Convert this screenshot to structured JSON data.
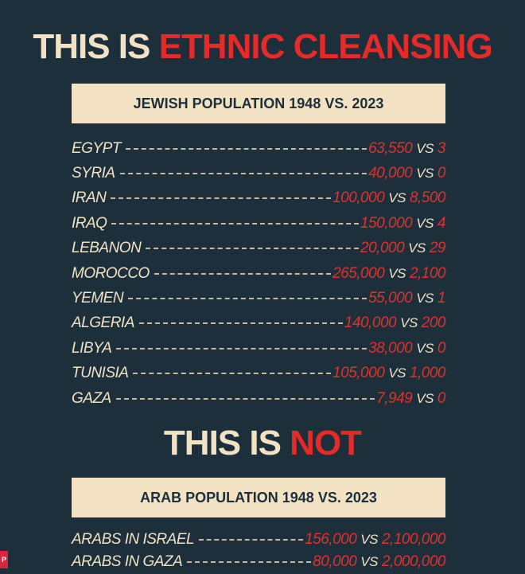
{
  "headline_1": {
    "part_1": "THIS IS ",
    "part_2": "ETHNIC CLEANSING"
  },
  "banner_1": "JEWISH POPULATION 1948 VS. 2023",
  "jewish_rows": [
    {
      "country": "EGYPT",
      "pop_1948": "63,550",
      "vs": "VS",
      "pop_2023": "3"
    },
    {
      "country": "SYRIA",
      "pop_1948": "40,000",
      "vs": "VS",
      "pop_2023": "0"
    },
    {
      "country": "IRAN",
      "pop_1948": "100,000",
      "vs": "VS",
      "pop_2023": "8,500"
    },
    {
      "country": "IRAQ",
      "pop_1948": "150,000",
      "vs": "VS",
      "pop_2023": "4"
    },
    {
      "country": "LEBANON",
      "pop_1948": "20,000",
      "vs": "VS",
      "pop_2023": "29"
    },
    {
      "country": "MOROCCO",
      "pop_1948": "265,000",
      "vs": "VS",
      "pop_2023": "2,100"
    },
    {
      "country": "YEMEN",
      "pop_1948": "55,000",
      "vs": "VS",
      "pop_2023": "1"
    },
    {
      "country": "ALGERIA",
      "pop_1948": "140,000",
      "vs": "VS",
      "pop_2023": "200"
    },
    {
      "country": "LIBYA",
      "pop_1948": "38,000",
      "vs": "VS",
      "pop_2023": "0"
    },
    {
      "country": "TUNISIA",
      "pop_1948": "105,000",
      "vs": "VS",
      "pop_2023": "1,000"
    },
    {
      "country": "GAZA",
      "pop_1948": "7,949",
      "vs": "VS",
      "pop_2023": "0"
    }
  ],
  "headline_2": {
    "part_1": "THIS IS ",
    "part_2": "NOT"
  },
  "banner_2": "ARAB POPULATION 1948 VS. 2023",
  "arab_rows": [
    {
      "country": "ARABS IN ISRAEL",
      "pop_1948": "156,000",
      "vs": "VS",
      "pop_2023": "2,100,000"
    },
    {
      "country": "ARABS IN GAZA",
      "pop_1948": "80,000",
      "vs": "VS",
      "pop_2023": "2,000,000"
    }
  ],
  "corner_mark": "P",
  "colors": {
    "background": "#1c2f3b",
    "cream": "#f1e2c6",
    "accent_red": "#e52a2a",
    "banner": "#f3e2c4"
  }
}
